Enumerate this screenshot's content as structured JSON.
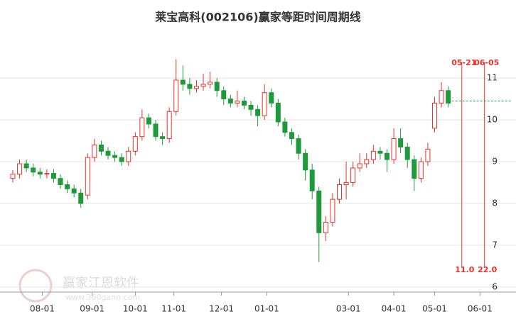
{
  "chart_data": {
    "type": "candlestick",
    "title": "莱宝高科(002106)赢家等距时间周期线",
    "up_color": "#e8322a",
    "down_color": "#1f9a3a",
    "grid": true,
    "xlim": [
      0,
      220
    ],
    "ylim": [
      6,
      11.9
    ],
    "yticks": [
      6,
      7,
      8,
      9,
      10,
      11
    ],
    "xticks": [
      {
        "value": 13,
        "label": "08-01"
      },
      {
        "value": 35,
        "label": "09-01"
      },
      {
        "value": 54,
        "label": "10-01"
      },
      {
        "value": 71,
        "label": "11-01"
      },
      {
        "value": 92,
        "label": "12-01"
      },
      {
        "value": 112,
        "label": "01-01"
      },
      {
        "value": 148,
        "label": "03-01"
      },
      {
        "value": 168,
        "label": "04-01"
      },
      {
        "value": 186,
        "label": "05-01"
      },
      {
        "value": 206,
        "label": "06-01"
      }
    ],
    "x": [
      0,
      3,
      6,
      9,
      12,
      15,
      18,
      21,
      24,
      27,
      30,
      33,
      36,
      39,
      42,
      45,
      48,
      51,
      54,
      57,
      60,
      63,
      66,
      69,
      72,
      75,
      78,
      81,
      84,
      87,
      90,
      93,
      96,
      99,
      102,
      105,
      108,
      111,
      114,
      117,
      120,
      123,
      126,
      129,
      132,
      135,
      138,
      141,
      144,
      147,
      150,
      153,
      156,
      159,
      162,
      165,
      168,
      171,
      174,
      177,
      180,
      183,
      186,
      189,
      192
    ],
    "open": [
      8.6,
      8.7,
      8.95,
      8.85,
      8.75,
      8.7,
      8.72,
      8.6,
      8.45,
      8.35,
      8.25,
      8.2,
      9.1,
      9.4,
      9.25,
      9.15,
      9.1,
      9.0,
      9.25,
      9.6,
      10.05,
      9.9,
      9.6,
      9.55,
      10.2,
      10.95,
      10.85,
      10.75,
      10.8,
      10.85,
      10.9,
      10.7,
      10.5,
      10.4,
      10.45,
      10.35,
      10.25,
      10.1,
      10.65,
      10.4,
      9.95,
      9.7,
      9.55,
      9.2,
      8.8,
      8.3,
      7.3,
      7.55,
      8.1,
      8.45,
      8.5,
      8.85,
      8.95,
      9.05,
      9.25,
      9.2,
      9.05,
      9.55,
      9.35,
      9.05,
      8.6,
      9.0,
      9.8,
      10.4,
      10.7
    ],
    "high": [
      8.8,
      9.05,
      9.05,
      8.95,
      8.85,
      8.82,
      8.82,
      8.7,
      8.55,
      8.45,
      8.35,
      9.2,
      9.55,
      9.5,
      9.35,
      9.25,
      9.2,
      9.35,
      9.7,
      10.25,
      10.15,
      10.0,
      9.7,
      10.3,
      11.45,
      11.3,
      11.0,
      10.95,
      11.1,
      11.15,
      11.0,
      10.8,
      10.6,
      10.7,
      10.55,
      10.45,
      10.35,
      10.85,
      10.75,
      10.5,
      10.05,
      9.8,
      9.65,
      9.3,
      8.95,
      8.4,
      7.7,
      8.25,
      8.6,
      9.0,
      9.0,
      9.2,
      9.2,
      9.4,
      9.35,
      9.3,
      9.8,
      9.8,
      9.45,
      9.15,
      9.1,
      9.45,
      10.55,
      10.9,
      10.8
    ],
    "low": [
      8.5,
      8.6,
      8.75,
      8.65,
      8.6,
      8.6,
      8.5,
      8.35,
      8.25,
      8.15,
      7.9,
      8.1,
      9.0,
      9.15,
      9.05,
      9.0,
      8.9,
      8.9,
      9.15,
      9.5,
      9.8,
      9.5,
      9.4,
      9.45,
      10.1,
      10.7,
      10.6,
      10.65,
      10.7,
      10.75,
      10.55,
      10.35,
      10.3,
      10.3,
      10.25,
      10.1,
      9.85,
      10.0,
      10.3,
      9.85,
      9.6,
      9.4,
      9.05,
      8.55,
      8.1,
      6.6,
      7.1,
      7.45,
      8.0,
      8.1,
      8.4,
      8.75,
      8.85,
      8.95,
      9.05,
      8.75,
      8.95,
      9.2,
      8.85,
      8.3,
      8.5,
      8.9,
      9.7,
      10.3,
      10.3
    ],
    "close": [
      8.7,
      8.95,
      8.85,
      8.75,
      8.7,
      8.72,
      8.6,
      8.45,
      8.35,
      8.25,
      8.0,
      9.1,
      9.4,
      9.25,
      9.15,
      9.1,
      9.0,
      9.25,
      9.6,
      10.05,
      9.9,
      9.6,
      9.55,
      10.2,
      10.95,
      10.85,
      10.75,
      10.8,
      10.85,
      10.9,
      10.7,
      10.5,
      10.4,
      10.45,
      10.35,
      10.25,
      10.1,
      10.65,
      10.4,
      9.95,
      9.7,
      9.55,
      9.2,
      8.8,
      8.3,
      7.3,
      7.55,
      8.1,
      8.45,
      8.5,
      8.85,
      8.95,
      9.05,
      9.25,
      9.2,
      9.05,
      9.55,
      9.35,
      9.05,
      8.6,
      9.0,
      9.3,
      10.4,
      10.7,
      10.4
    ],
    "reference_line": {
      "value": 10.45,
      "color": "#1f9a3a"
    },
    "cycle_lines": {
      "color": "#e8322a",
      "x": [
        198,
        208
      ],
      "top_labels": [
        "05-21",
        "06-05"
      ],
      "bottom_labels": [
        "11.0",
        "22.0"
      ]
    },
    "watermark": {
      "name": "赢家江恩软件",
      "url": "www.360gann.com"
    }
  }
}
